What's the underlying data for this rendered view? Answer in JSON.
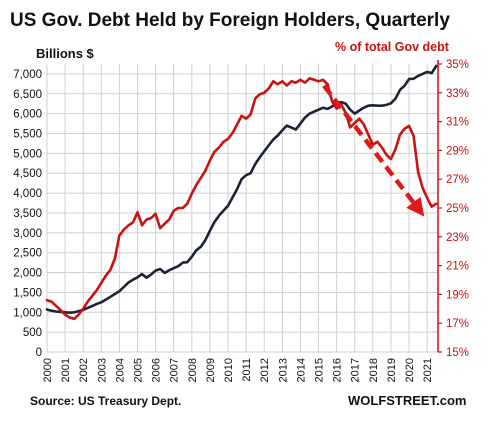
{
  "chart_data": {
    "type": "line",
    "title": "US Gov. Debt Held by Foreign Holders,  Quarterly",
    "left_axis": {
      "label": "Billions  $",
      "min": 0,
      "max": 7250,
      "ticks": [
        0,
        500,
        1000,
        1500,
        2000,
        2500,
        3000,
        3500,
        4000,
        4500,
        5000,
        5500,
        6000,
        6500,
        7000
      ],
      "tick_labels": [
        "0",
        "500",
        "1,000",
        "1,500",
        "2,000",
        "2,500",
        "3,000",
        "3,500",
        "4,000",
        "4,500",
        "5,000",
        "5,500",
        "6,000",
        "6,500",
        "7,000"
      ]
    },
    "right_axis": {
      "label": "% of total Gov debt",
      "min": 15,
      "max": 35,
      "ticks": [
        15,
        17,
        19,
        21,
        23,
        25,
        27,
        29,
        31,
        33,
        35
      ],
      "tick_labels": [
        "15%",
        "17%",
        "19%",
        "21%",
        "23%",
        "25%",
        "27%",
        "29%",
        "31%",
        "33%",
        "35%"
      ],
      "color": "#cc1111"
    },
    "x_axis": {
      "min": 2000,
      "max": 2021.6,
      "tick_labels": [
        "2000",
        "2001",
        "2002",
        "2003",
        "2004",
        "2005",
        "2006",
        "2007",
        "2008",
        "2009",
        "2010",
        "2011",
        "2012",
        "2013",
        "2014",
        "2015",
        "2016",
        "2017",
        "2018",
        "2019",
        "2020",
        "2021"
      ]
    },
    "grid": true,
    "series": [
      {
        "axis": "left",
        "color": "#1a2436",
        "points": [
          [
            2000.0,
            1070
          ],
          [
            2000.25,
            1040
          ],
          [
            2000.5,
            1020
          ],
          [
            2000.75,
            1010
          ],
          [
            2001.0,
            1000
          ],
          [
            2001.25,
            990
          ],
          [
            2001.5,
            1000
          ],
          [
            2001.75,
            1030
          ],
          [
            2002.0,
            1060
          ],
          [
            2002.25,
            1110
          ],
          [
            2002.5,
            1160
          ],
          [
            2002.75,
            1210
          ],
          [
            2003.0,
            1250
          ],
          [
            2003.25,
            1320
          ],
          [
            2003.5,
            1390
          ],
          [
            2003.75,
            1460
          ],
          [
            2004.0,
            1530
          ],
          [
            2004.25,
            1640
          ],
          [
            2004.5,
            1750
          ],
          [
            2004.75,
            1820
          ],
          [
            2005.0,
            1880
          ],
          [
            2005.25,
            1960
          ],
          [
            2005.5,
            1870
          ],
          [
            2005.75,
            1950
          ],
          [
            2006.0,
            2050
          ],
          [
            2006.25,
            2090
          ],
          [
            2006.5,
            1990
          ],
          [
            2006.75,
            2060
          ],
          [
            2007.0,
            2110
          ],
          [
            2007.25,
            2160
          ],
          [
            2007.5,
            2250
          ],
          [
            2007.75,
            2260
          ],
          [
            2008.0,
            2400
          ],
          [
            2008.25,
            2560
          ],
          [
            2008.5,
            2650
          ],
          [
            2008.75,
            2820
          ],
          [
            2009.0,
            3050
          ],
          [
            2009.25,
            3270
          ],
          [
            2009.5,
            3430
          ],
          [
            2009.75,
            3560
          ],
          [
            2010.0,
            3680
          ],
          [
            2010.25,
            3890
          ],
          [
            2010.5,
            4100
          ],
          [
            2010.75,
            4350
          ],
          [
            2011.0,
            4450
          ],
          [
            2011.25,
            4500
          ],
          [
            2011.5,
            4730
          ],
          [
            2011.75,
            4900
          ],
          [
            2012.0,
            5050
          ],
          [
            2012.25,
            5200
          ],
          [
            2012.5,
            5350
          ],
          [
            2012.75,
            5450
          ],
          [
            2013.0,
            5580
          ],
          [
            2013.25,
            5700
          ],
          [
            2013.5,
            5650
          ],
          [
            2013.75,
            5600
          ],
          [
            2014.0,
            5750
          ],
          [
            2014.25,
            5900
          ],
          [
            2014.5,
            6000
          ],
          [
            2014.75,
            6050
          ],
          [
            2015.0,
            6100
          ],
          [
            2015.25,
            6150
          ],
          [
            2015.5,
            6120
          ],
          [
            2015.75,
            6180
          ],
          [
            2016.0,
            6270
          ],
          [
            2016.25,
            6290
          ],
          [
            2016.5,
            6250
          ],
          [
            2016.75,
            6100
          ],
          [
            2017.0,
            6000
          ],
          [
            2017.25,
            6080
          ],
          [
            2017.5,
            6150
          ],
          [
            2017.75,
            6200
          ],
          [
            2018.0,
            6210
          ],
          [
            2018.25,
            6200
          ],
          [
            2018.5,
            6200
          ],
          [
            2018.75,
            6220
          ],
          [
            2019.0,
            6260
          ],
          [
            2019.25,
            6380
          ],
          [
            2019.5,
            6600
          ],
          [
            2019.75,
            6700
          ],
          [
            2020.0,
            6870
          ],
          [
            2020.25,
            6880
          ],
          [
            2020.5,
            6950
          ],
          [
            2020.75,
            7000
          ],
          [
            2021.0,
            7050
          ],
          [
            2021.25,
            7020
          ],
          [
            2021.5,
            7200
          ]
        ]
      },
      {
        "axis": "right",
        "color": "#cc1111",
        "points": [
          [
            2000.0,
            18.6
          ],
          [
            2000.25,
            18.5
          ],
          [
            2000.5,
            18.2
          ],
          [
            2000.75,
            17.9
          ],
          [
            2001.0,
            17.6
          ],
          [
            2001.25,
            17.4
          ],
          [
            2001.5,
            17.3
          ],
          [
            2001.75,
            17.6
          ],
          [
            2002.0,
            18.0
          ],
          [
            2002.25,
            18.5
          ],
          [
            2002.5,
            18.9
          ],
          [
            2002.75,
            19.3
          ],
          [
            2003.0,
            19.8
          ],
          [
            2003.25,
            20.3
          ],
          [
            2003.5,
            20.7
          ],
          [
            2003.75,
            21.5
          ],
          [
            2004.0,
            23.1
          ],
          [
            2004.25,
            23.5
          ],
          [
            2004.5,
            23.8
          ],
          [
            2004.75,
            24.0
          ],
          [
            2005.0,
            24.7
          ],
          [
            2005.25,
            23.8
          ],
          [
            2005.5,
            24.2
          ],
          [
            2005.75,
            24.3
          ],
          [
            2006.0,
            24.6
          ],
          [
            2006.25,
            23.6
          ],
          [
            2006.5,
            23.9
          ],
          [
            2006.75,
            24.2
          ],
          [
            2007.0,
            24.8
          ],
          [
            2007.25,
            25.0
          ],
          [
            2007.5,
            25.0
          ],
          [
            2007.75,
            25.3
          ],
          [
            2008.0,
            26.0
          ],
          [
            2008.25,
            26.6
          ],
          [
            2008.5,
            27.1
          ],
          [
            2008.75,
            27.6
          ],
          [
            2009.0,
            28.3
          ],
          [
            2009.25,
            28.9
          ],
          [
            2009.5,
            29.2
          ],
          [
            2009.75,
            29.6
          ],
          [
            2010.0,
            29.8
          ],
          [
            2010.25,
            30.2
          ],
          [
            2010.5,
            30.8
          ],
          [
            2010.75,
            31.4
          ],
          [
            2011.0,
            31.2
          ],
          [
            2011.25,
            31.5
          ],
          [
            2011.5,
            32.6
          ],
          [
            2011.75,
            32.9
          ],
          [
            2012.0,
            33.0
          ],
          [
            2012.25,
            33.3
          ],
          [
            2012.5,
            33.8
          ],
          [
            2012.75,
            33.6
          ],
          [
            2013.0,
            33.8
          ],
          [
            2013.25,
            33.5
          ],
          [
            2013.5,
            33.8
          ],
          [
            2013.75,
            33.7
          ],
          [
            2014.0,
            33.9
          ],
          [
            2014.25,
            33.7
          ],
          [
            2014.5,
            34.0
          ],
          [
            2014.75,
            33.9
          ],
          [
            2015.0,
            33.8
          ],
          [
            2015.25,
            33.9
          ],
          [
            2015.5,
            33.6
          ],
          [
            2015.75,
            32.4
          ],
          [
            2016.0,
            31.9
          ],
          [
            2016.25,
            32.2
          ],
          [
            2016.5,
            31.6
          ],
          [
            2016.75,
            30.6
          ],
          [
            2017.0,
            30.9
          ],
          [
            2017.25,
            31.2
          ],
          [
            2017.5,
            30.8
          ],
          [
            2017.75,
            30.1
          ],
          [
            2018.0,
            29.4
          ],
          [
            2018.25,
            29.6
          ],
          [
            2018.5,
            29.2
          ],
          [
            2018.75,
            28.7
          ],
          [
            2019.0,
            28.4
          ],
          [
            2019.25,
            29.1
          ],
          [
            2019.5,
            30.1
          ],
          [
            2019.75,
            30.5
          ],
          [
            2020.0,
            30.7
          ],
          [
            2020.25,
            30.0
          ],
          [
            2020.5,
            27.5
          ],
          [
            2020.75,
            26.4
          ],
          [
            2021.0,
            25.7
          ],
          [
            2021.25,
            25.1
          ],
          [
            2021.5,
            25.3
          ]
        ]
      }
    ],
    "annotations": [
      {
        "type": "arrow",
        "style": "dashed",
        "color": "#e01818",
        "from": [
          2015.3,
          33.5
        ],
        "to": [
          2020.6,
          24.8
        ]
      }
    ]
  },
  "footer": {
    "source": "Source: US Treasury Dept.",
    "brand": "WOLFSTREET.com"
  }
}
